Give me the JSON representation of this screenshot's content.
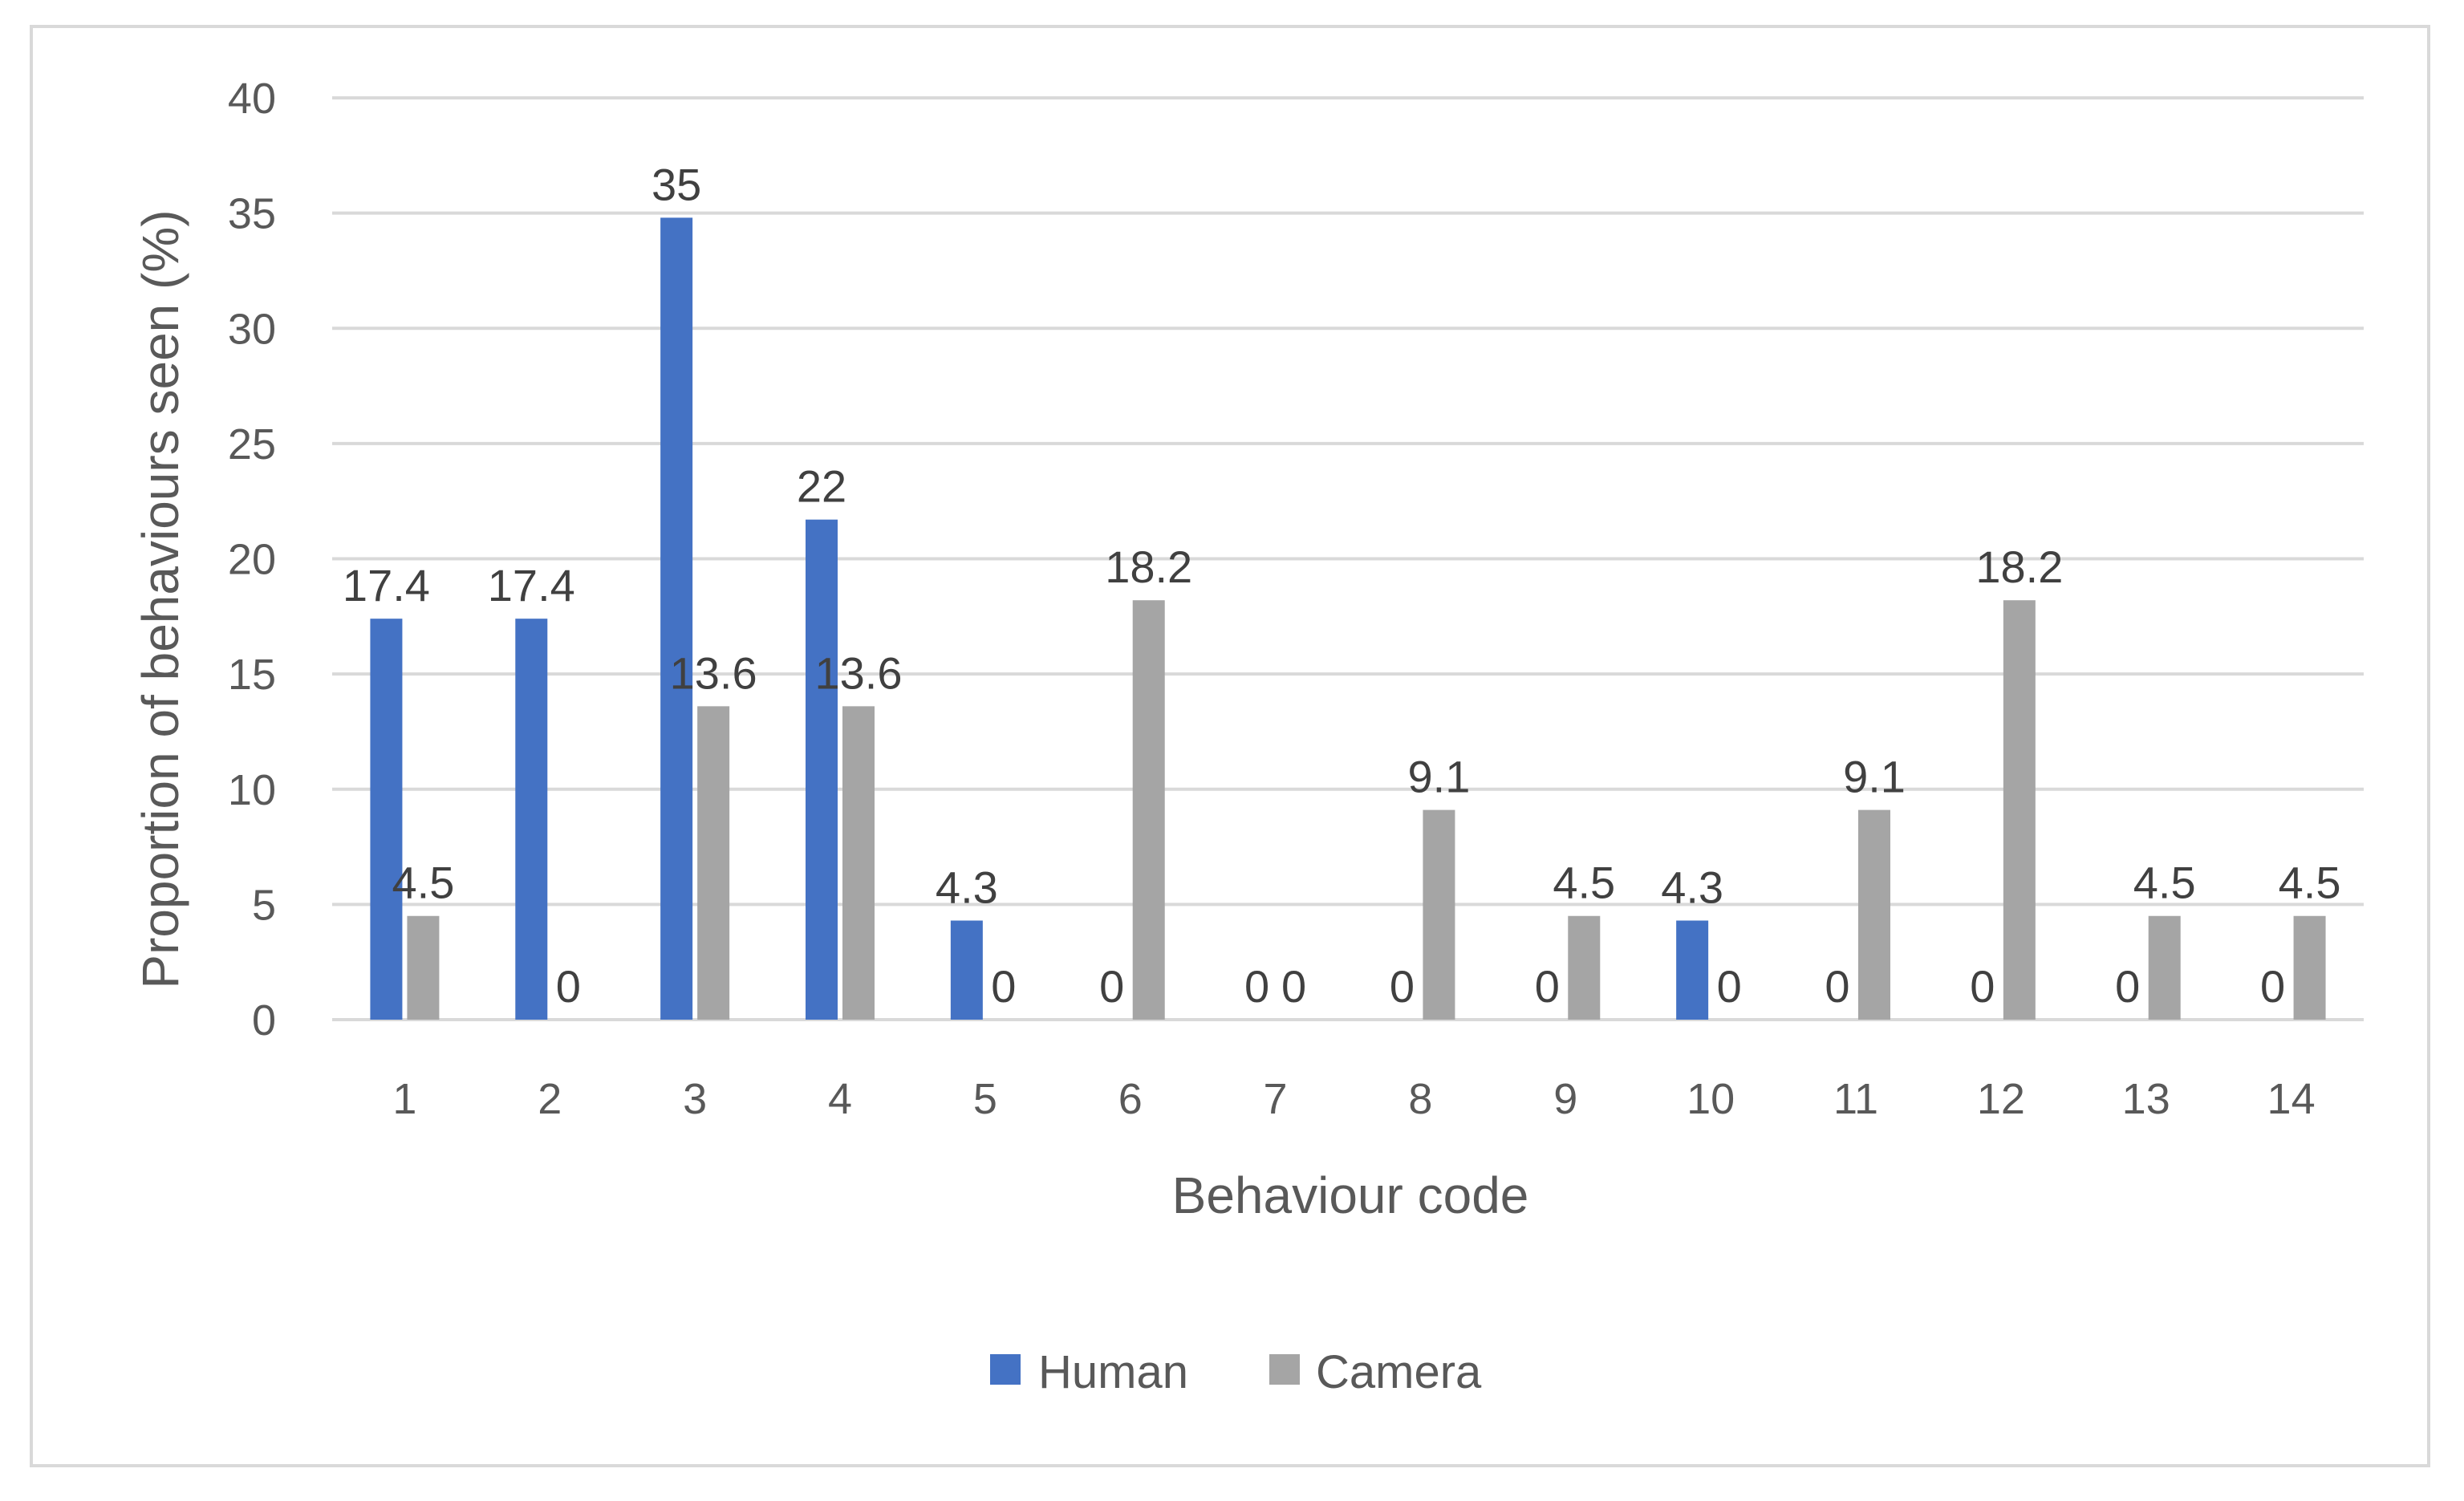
{
  "chart_data": {
    "type": "bar",
    "title": "",
    "xlabel": "Behaviour code",
    "ylabel": "Proportion of behaviours seen (%)",
    "ylim": [
      0,
      40
    ],
    "yticks": [
      "0",
      "5",
      "10",
      "15",
      "20",
      "25",
      "30",
      "35",
      "40"
    ],
    "categories": [
      "1",
      "2",
      "3",
      "4",
      "5",
      "6",
      "7",
      "8",
      "9",
      "10",
      "11",
      "12",
      "13",
      "14"
    ],
    "grid": true,
    "legend_position": "bottom",
    "series": [
      {
        "name": "Human",
        "color": "#4472c4",
        "values": [
          17.4,
          17.4,
          34.8,
          21.7,
          4.3,
          0,
          0,
          0,
          0,
          4.3,
          0,
          0,
          0,
          0
        ],
        "labels": [
          "17.4",
          "17.4",
          "35",
          "22",
          "4.3",
          "0",
          "0",
          "0",
          "0",
          "4.3",
          "0",
          "0",
          "0",
          "0"
        ]
      },
      {
        "name": "Camera",
        "color": "#a5a5a5",
        "values": [
          4.5,
          0,
          13.6,
          13.6,
          0,
          18.2,
          0,
          9.1,
          4.5,
          0,
          9.1,
          18.2,
          4.5,
          4.5
        ],
        "labels": [
          "4.5",
          "0",
          "13.6",
          "13.6",
          "0",
          "18.2",
          "0",
          "9.1",
          "4.5",
          "0",
          "9.1",
          "18.2",
          "4.5",
          "4.5"
        ]
      }
    ]
  }
}
